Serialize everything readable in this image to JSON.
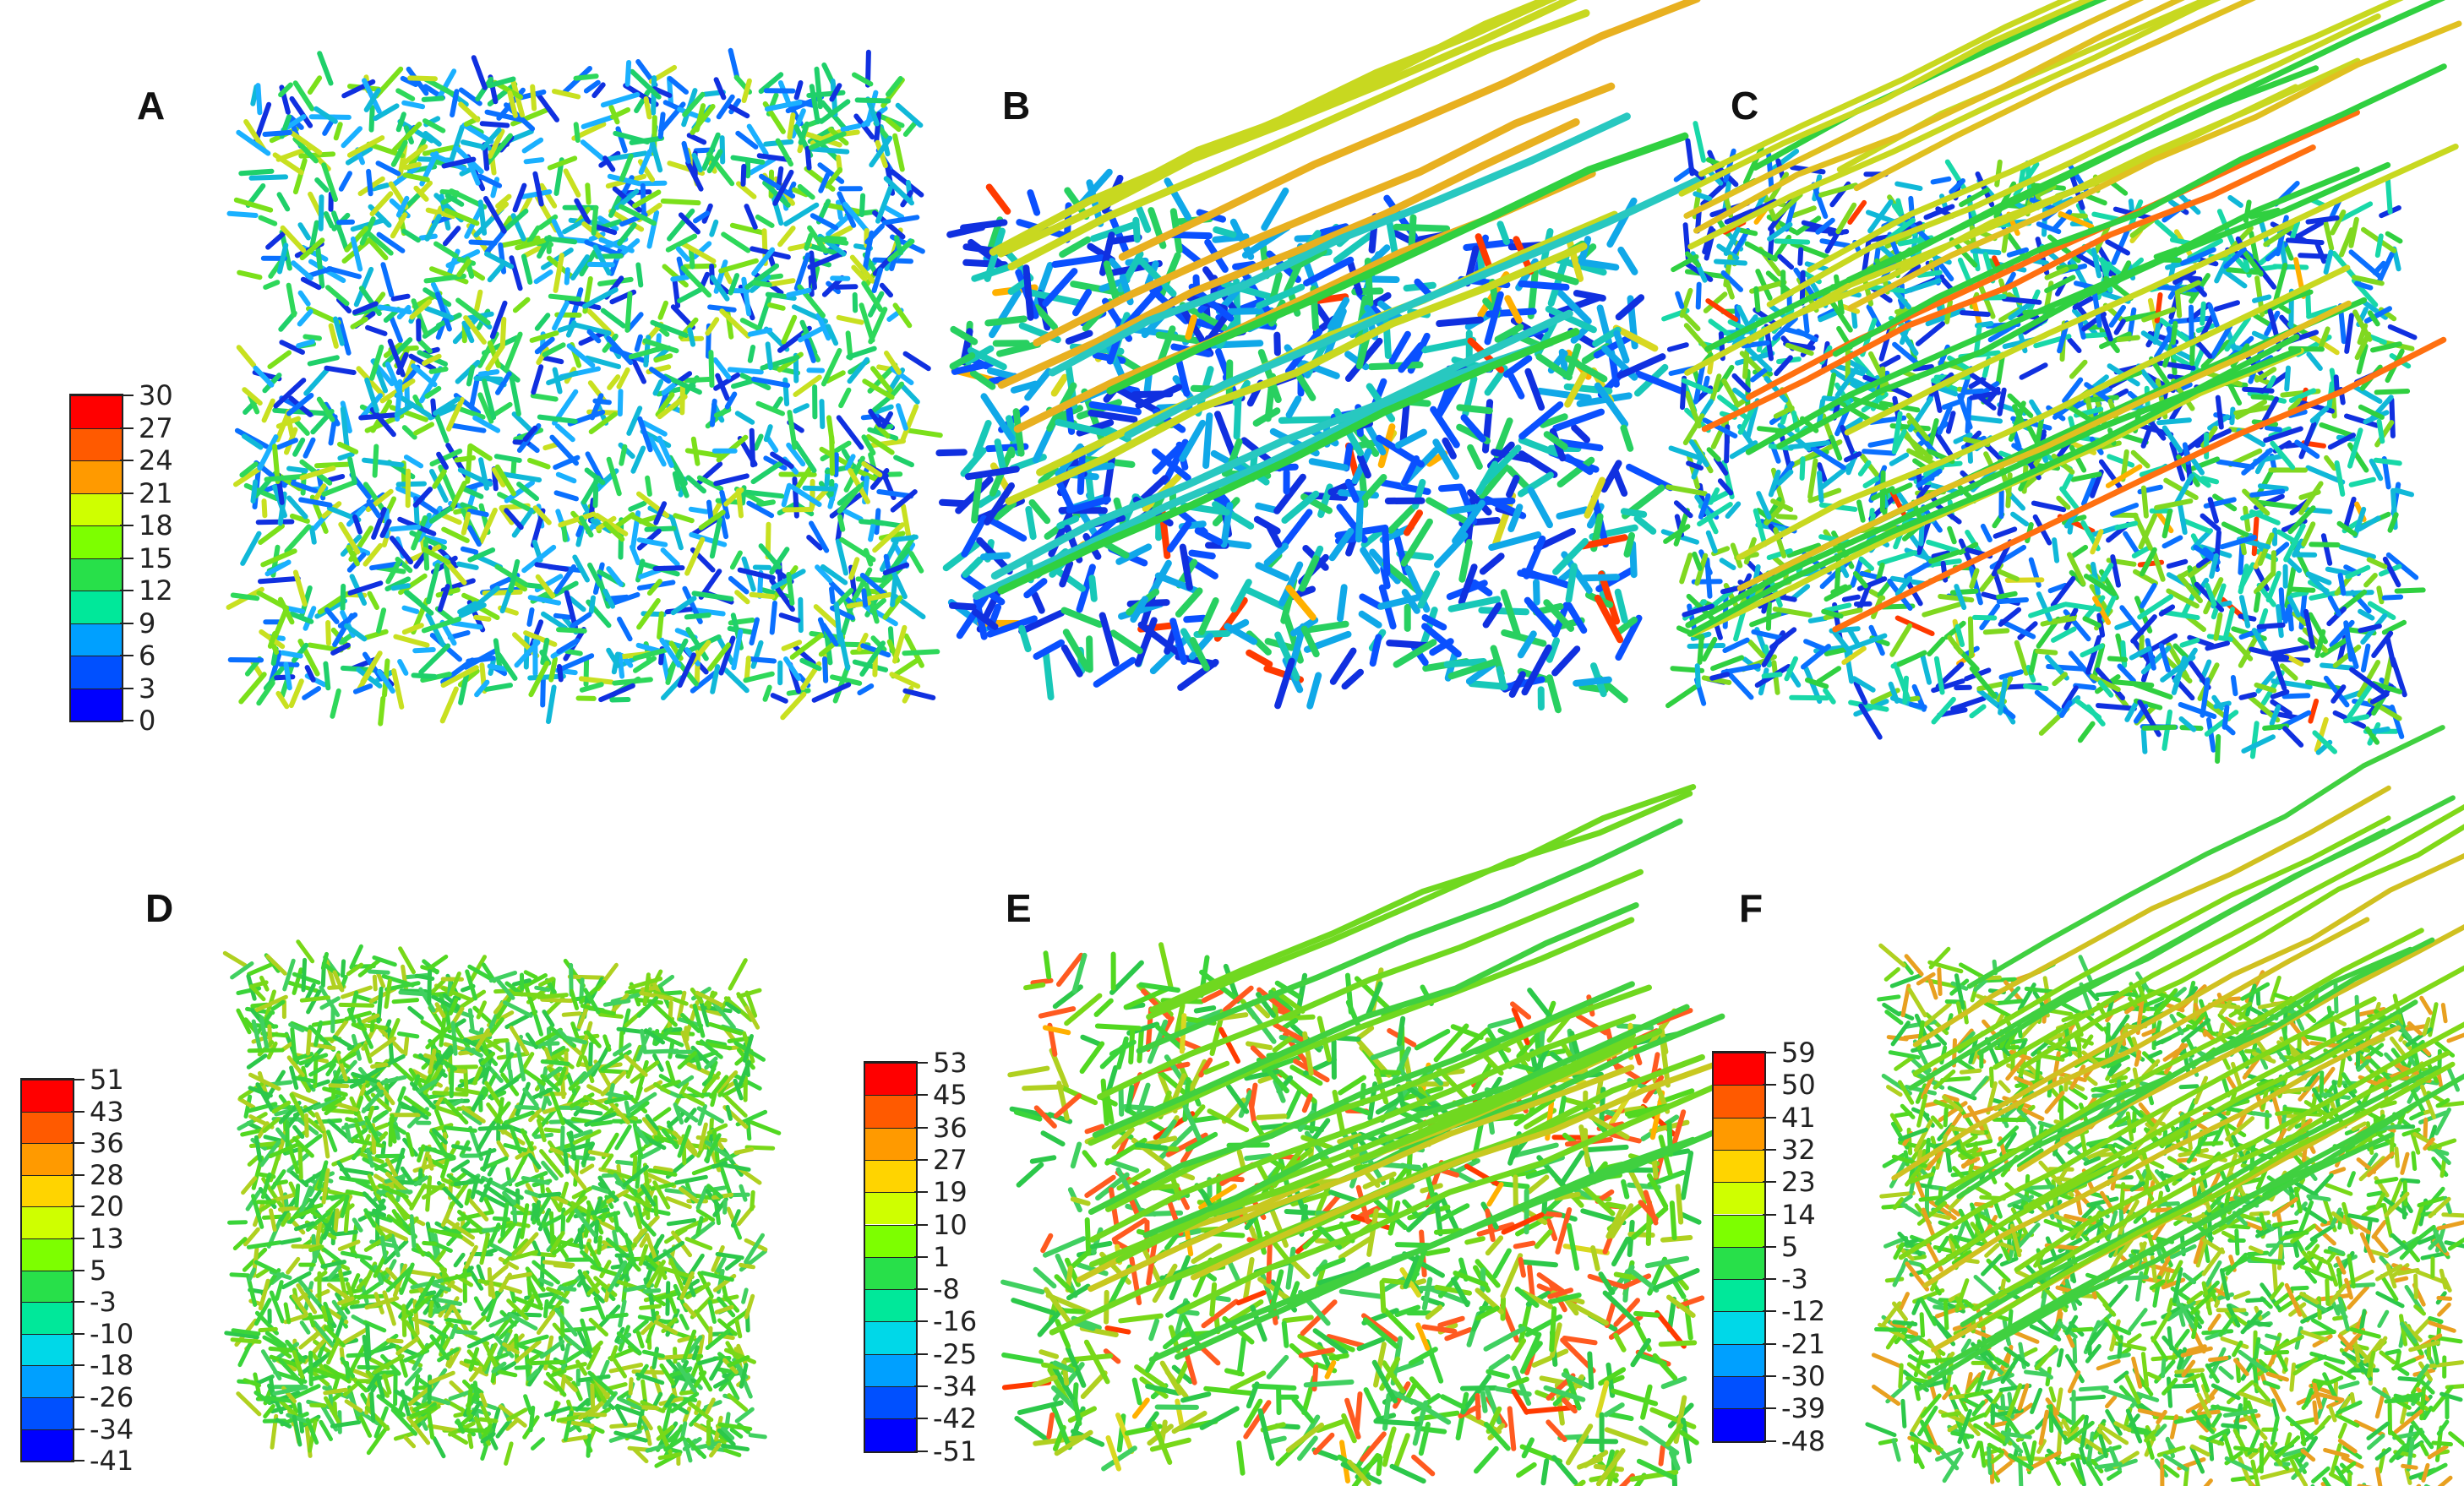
{
  "panels": [
    {
      "id": "A",
      "label": "A",
      "legend": [
        "30",
        "27",
        "24",
        "21",
        "18",
        "15",
        "12",
        "9",
        "6",
        "3",
        "0"
      ]
    },
    {
      "id": "B",
      "label": "B"
    },
    {
      "id": "C",
      "label": "C"
    },
    {
      "id": "D",
      "label": "D",
      "legend": [
        "51",
        "43",
        "36",
        "28",
        "20",
        "13",
        "5",
        "-3",
        "-10",
        "-18",
        "-26",
        "-34",
        "-41"
      ]
    },
    {
      "id": "E",
      "label": "E",
      "legend": [
        "53",
        "45",
        "36",
        "27",
        "19",
        "10",
        "1",
        "-8",
        "-16",
        "-25",
        "-34",
        "-42",
        "-51"
      ]
    },
    {
      "id": "F",
      "label": "F",
      "legend": [
        "59",
        "50",
        "41",
        "32",
        "23",
        "14",
        "5",
        "-3",
        "-12",
        "-21",
        "-30",
        "-39",
        "-48"
      ]
    }
  ],
  "colors": {
    "scale": [
      "#ff0000",
      "#ff5a00",
      "#ff9a00",
      "#ffd400",
      "#cfff00",
      "#7dff00",
      "#28e04a",
      "#00e89a",
      "#00d8e8",
      "#00a0ff",
      "#0050ff",
      "#0000ff"
    ],
    "network_top": [
      "#1fd06a",
      "#2ed85a",
      "#10b8d8",
      "#0a70ff",
      "#1030e0",
      "#7be01a",
      "#c8e020",
      "#1ab0ff"
    ],
    "network_bottom": [
      "#3ad43a",
      "#52d820",
      "#2cc84a",
      "#78d818",
      "#b0d020",
      "#40d060"
    ]
  }
}
